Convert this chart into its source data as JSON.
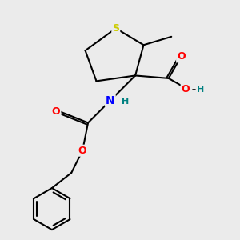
{
  "background_color": "#ebebeb",
  "atom_colors": {
    "S": "#cccc00",
    "O": "#ff0000",
    "N": "#0000ff",
    "C": "#000000",
    "H": "#008080"
  },
  "bond_color": "#000000",
  "bond_width": 1.5,
  "figsize": [
    3.0,
    3.0
  ],
  "dpi": 100
}
